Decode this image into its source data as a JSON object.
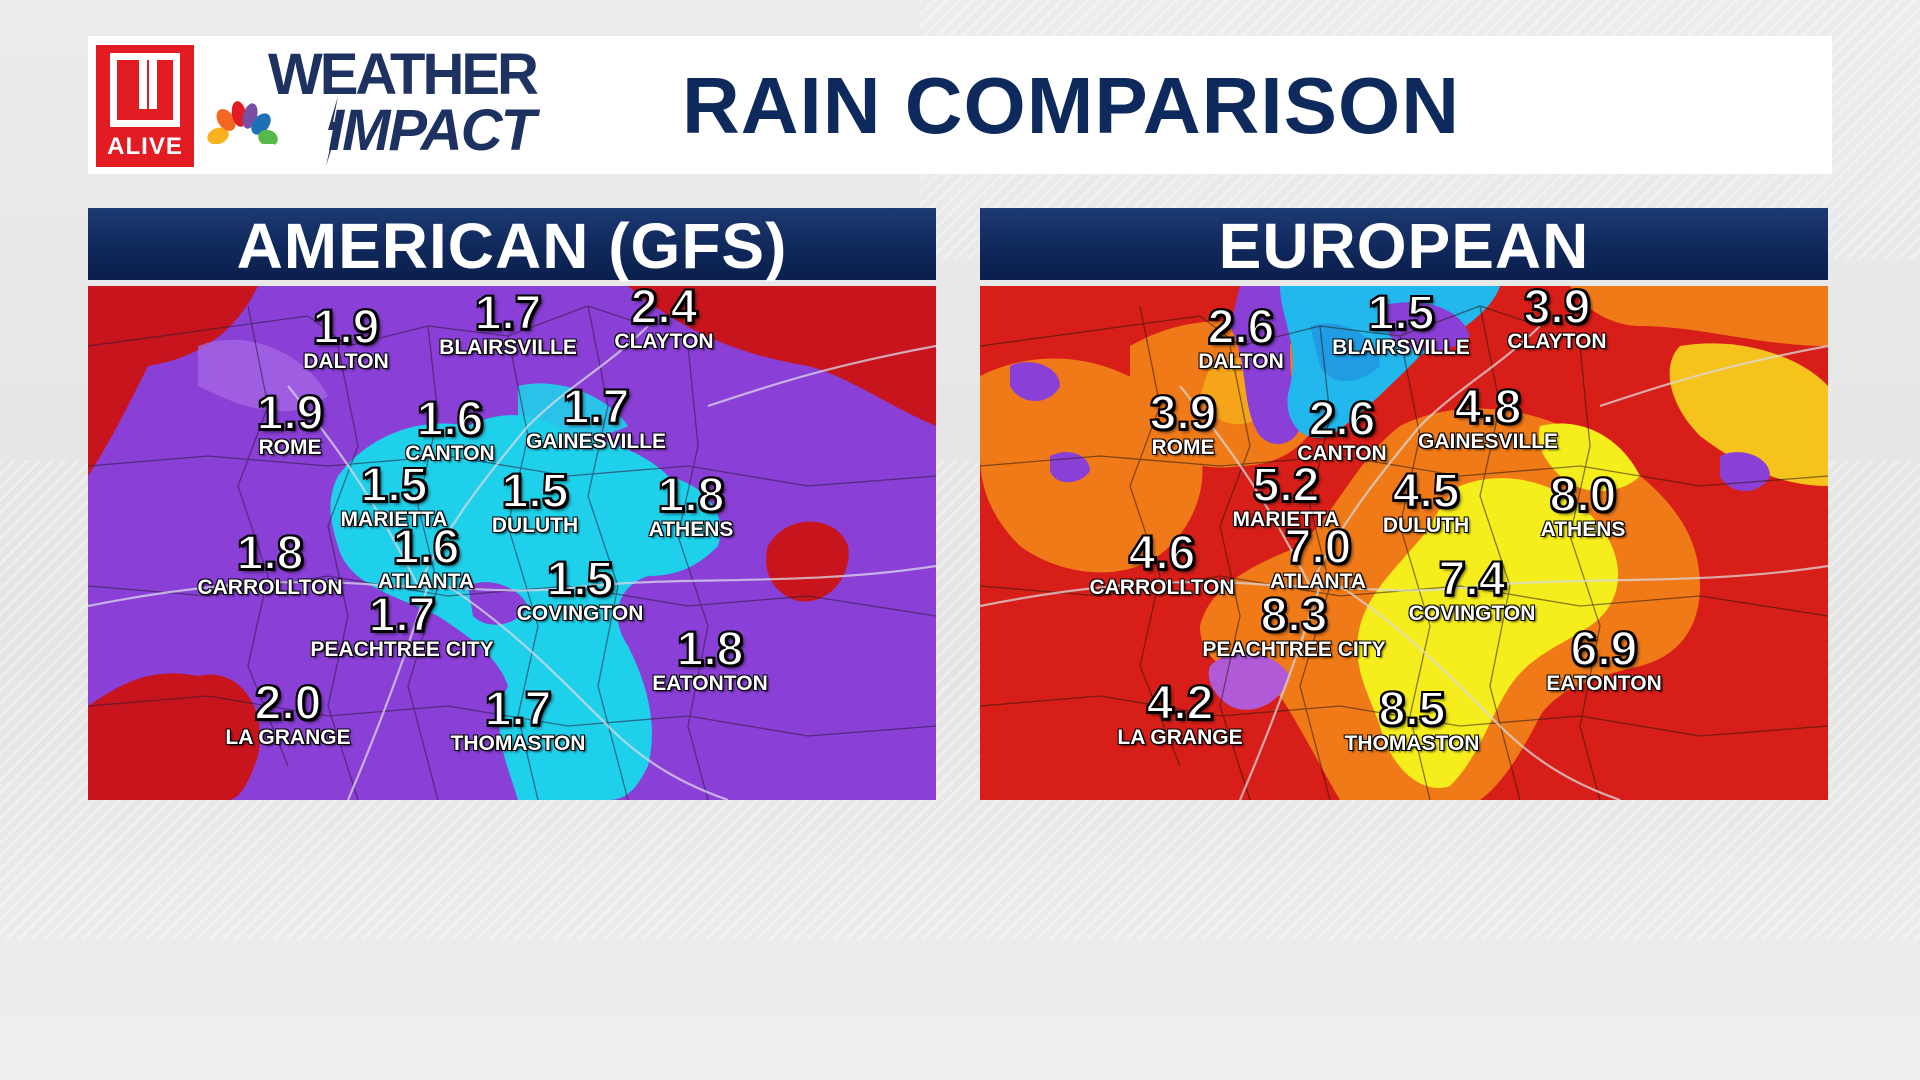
{
  "header": {
    "station_logo_text": "ALIVE",
    "brand_line1": "WEATHER",
    "brand_line2": "IMPACT",
    "title": "RAIN COMPARISON"
  },
  "panels": [
    {
      "title": "AMERICAN (GFS)",
      "cities": [
        {
          "name": "DALTON",
          "value": "1.9"
        },
        {
          "name": "BLAIRSVILLE",
          "value": "1.7"
        },
        {
          "name": "CLAYTON",
          "value": "2.4"
        },
        {
          "name": "ROME",
          "value": "1.9"
        },
        {
          "name": "CANTON",
          "value": "1.6"
        },
        {
          "name": "GAINESVILLE",
          "value": "1.7"
        },
        {
          "name": "MARIETTA",
          "value": "1.5"
        },
        {
          "name": "DULUTH",
          "value": "1.5"
        },
        {
          "name": "ATHENS",
          "value": "1.8"
        },
        {
          "name": "CARROLLTON",
          "value": "1.8"
        },
        {
          "name": "ATLANTA",
          "value": "1.6"
        },
        {
          "name": "COVINGTON",
          "value": "1.5"
        },
        {
          "name": "PEACHTREE CITY",
          "value": "1.7"
        },
        {
          "name": "EATONTON",
          "value": "1.8"
        },
        {
          "name": "LA GRANGE",
          "value": "2.0"
        },
        {
          "name": "THOMASTON",
          "value": "1.7"
        }
      ]
    },
    {
      "title": "EUROPEAN",
      "cities": [
        {
          "name": "DALTON",
          "value": "2.6"
        },
        {
          "name": "BLAIRSVILLE",
          "value": "1.5"
        },
        {
          "name": "CLAYTON",
          "value": "3.9"
        },
        {
          "name": "ROME",
          "value": "3.9"
        },
        {
          "name": "CANTON",
          "value": "2.6"
        },
        {
          "name": "GAINESVILLE",
          "value": "4.8"
        },
        {
          "name": "MARIETTA",
          "value": "5.2"
        },
        {
          "name": "DULUTH",
          "value": "4.5"
        },
        {
          "name": "ATHENS",
          "value": "8.0"
        },
        {
          "name": "CARROLLTON",
          "value": "4.6"
        },
        {
          "name": "ATLANTA",
          "value": "7.0"
        },
        {
          "name": "COVINGTON",
          "value": "7.4"
        },
        {
          "name": "PEACHTREE CITY",
          "value": "8.3"
        },
        {
          "name": "EATONTON",
          "value": "6.9"
        },
        {
          "name": "LA GRANGE",
          "value": "4.2"
        },
        {
          "name": "THOMASTON",
          "value": "8.5"
        }
      ]
    }
  ],
  "colors": {
    "navy": "#0e2a5c",
    "gfs_purple": "#8a3fd6",
    "gfs_cyan": "#1fd0ea",
    "gfs_red": "#c8141c",
    "ecmwf_red": "#d81e18",
    "ecmwf_orange": "#f07a18",
    "ecmwf_yellow": "#f6ee1c",
    "ecmwf_blue": "#22b8ee"
  }
}
